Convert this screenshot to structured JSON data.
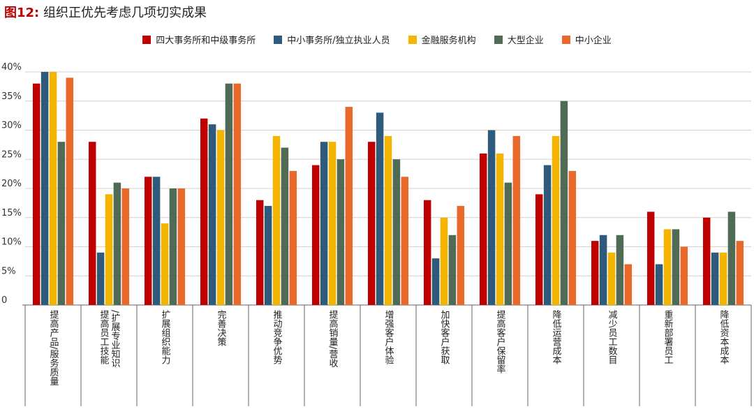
{
  "figure": {
    "number": "图12:",
    "title": "组织正优先考虑几项切实成果"
  },
  "chart_data": {
    "type": "bar",
    "categories": [
      "提高产品/服务质量",
      "提高员工技能/扩展专业知识",
      "扩展组织能力",
      "完善决策",
      "推动竞争优势",
      "提高销量/营收",
      "增强客户体验",
      "加快客户获取",
      "提高客户保留率",
      "降低运营成本",
      "减少员工数目",
      "重新部署员工",
      "降低资本成本"
    ],
    "category_label_lines": [
      [
        "提高产品/服务质量"
      ],
      [
        "提高员工技能",
        "/扩展专业知识"
      ],
      [
        "扩展组织能力"
      ],
      [
        "完善决策"
      ],
      [
        "推动竞争优势"
      ],
      [
        "提高销量/营收"
      ],
      [
        "增强客户体验"
      ],
      [
        "加快客户获取"
      ],
      [
        "提高客户保留率"
      ],
      [
        "降低运营成本"
      ],
      [
        "减少员工数目"
      ],
      [
        "重新部署员工"
      ],
      [
        "降低资本成本"
      ]
    ],
    "series": [
      {
        "name": "四大事务所和中级事务所",
        "color": "#c00000",
        "values": [
          38,
          28,
          22,
          32,
          18,
          24,
          28,
          18,
          26,
          19,
          11,
          16,
          15
        ]
      },
      {
        "name": "中小事务所/独立执业人员",
        "color": "#2e5a7c",
        "values": [
          40,
          9,
          22,
          31,
          17,
          28,
          33,
          8,
          30,
          24,
          12,
          7,
          9
        ]
      },
      {
        "name": "金融服务机构",
        "color": "#f5b400",
        "values": [
          40,
          19,
          14,
          30,
          29,
          28,
          29,
          15,
          26,
          29,
          9,
          13,
          9
        ]
      },
      {
        "name": "大型企业",
        "color": "#4f6b55",
        "values": [
          28,
          21,
          20,
          38,
          27,
          25,
          25,
          12,
          21,
          35,
          12,
          13,
          16
        ]
      },
      {
        "name": "中小企业",
        "color": "#e9692c",
        "values": [
          39,
          20,
          20,
          38,
          23,
          34,
          22,
          17,
          29,
          23,
          7,
          10,
          11
        ]
      }
    ],
    "y_ticks": [
      "0",
      "5%",
      "10%",
      "15%",
      "20%",
      "25%",
      "30%",
      "35%",
      "40%"
    ],
    "ylim": [
      0,
      40
    ],
    "grid": true,
    "legend_position": "top-center"
  }
}
